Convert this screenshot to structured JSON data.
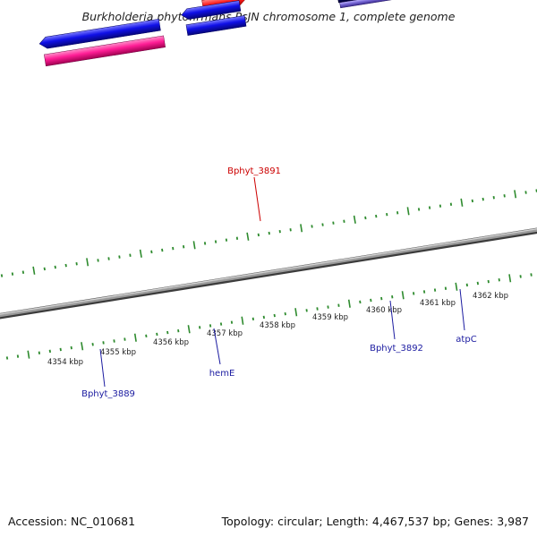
{
  "title": "Burkholderia phytofirmans PsJN chromosome 1, complete genome",
  "footer": {
    "accession": "Accession: NC_010681",
    "summary": "Topology: circular; Length: 4,467,537 bp; Genes: 3,987"
  },
  "colors": {
    "background": "#ffffff",
    "backbone": "#8a8a8a",
    "tick": "#2e8b2e",
    "forward_gene": "#ff1a1a",
    "reverse_gene": "#1010e8",
    "pink_gene": "#ff1e96",
    "cyan_gene": "#10f0ff",
    "navy_gene": "#0a0a70",
    "lavender_gene": "#7a6ad8",
    "label_blue": "#1a1aa0",
    "label_red": "#cc0000"
  },
  "kbp_labels": [
    "4354 kbp",
    "4355 kbp",
    "4356 kbp",
    "4357 kbp",
    "4358 kbp",
    "4359 kbp",
    "4360 kbp",
    "4361 kbp",
    "4362 kbp"
  ],
  "gene_labels": [
    {
      "id": "bphyt-3891",
      "text": "Bphyt_3891",
      "color": "red"
    },
    {
      "id": "bphyt-3889",
      "text": "Bphyt_3889",
      "color": "blue"
    },
    {
      "id": "hemE",
      "text": "hemE",
      "color": "blue"
    },
    {
      "id": "bphyt-3892",
      "text": "Bphyt_3892",
      "color": "blue"
    },
    {
      "id": "atpC",
      "text": "atpC",
      "color": "blue"
    }
  ]
}
